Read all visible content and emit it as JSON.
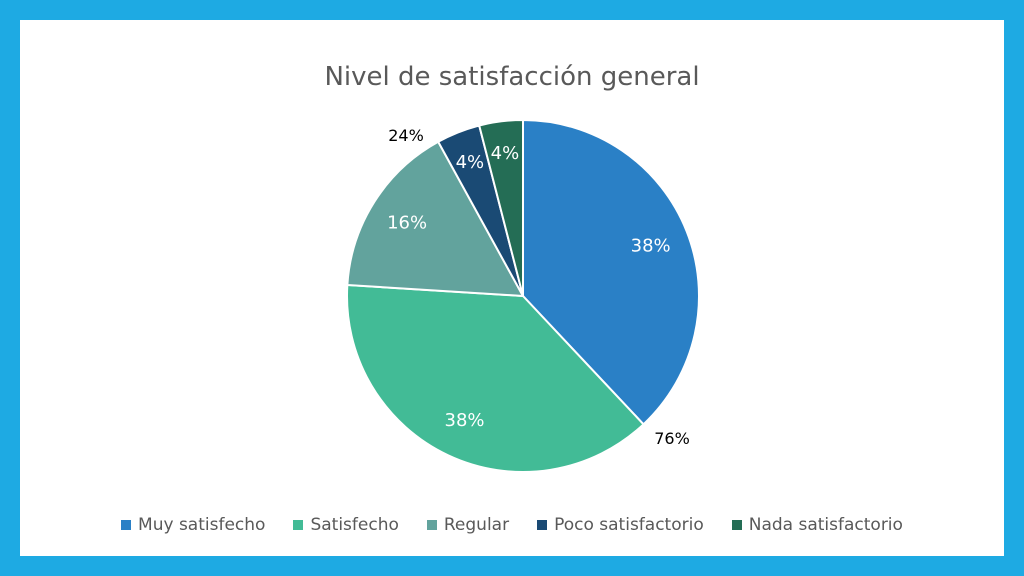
{
  "chart_data": {
    "type": "pie",
    "title": "Nivel de satisfacción general",
    "slices": [
      {
        "name": "Muy satisfecho",
        "value": 38,
        "label": "38%",
        "color": "#2a80c6"
      },
      {
        "name": "Satisfecho",
        "value": 38,
        "label": "38%",
        "color": "#42bb96"
      },
      {
        "name": "Regular",
        "value": 16,
        "label": "16%",
        "color": "#62a39d"
      },
      {
        "name": "Poco satisfactorio",
        "value": 4,
        "label": "4%",
        "color": "#1a4a74"
      },
      {
        "name": "Nada satisfactorio",
        "value": 4,
        "label": "4%",
        "color": "#246d55"
      }
    ],
    "annotations": [
      "76%",
      "24%"
    ],
    "legend_position": "bottom"
  }
}
